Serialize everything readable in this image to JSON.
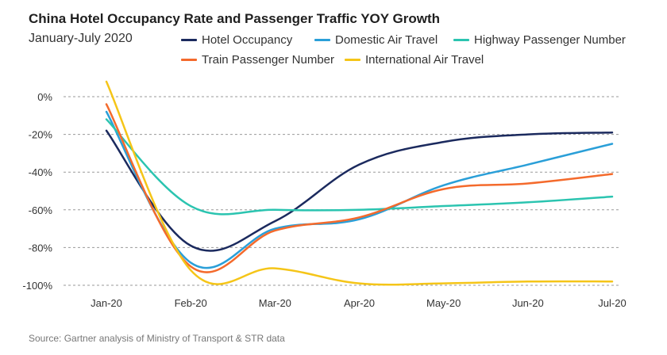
{
  "title": "China Hotel Occupancy Rate and Passenger Traffic YOY Growth",
  "subtitle": "January-July 2020",
  "source": "Source: Gartner analysis of Ministry of Transport & STR data",
  "chart_data": {
    "type": "line",
    "title": "China Hotel Occupancy Rate and Passenger Traffic YOY Growth",
    "subtitle": "January-July 2020",
    "categories": [
      "Jan-20",
      "Feb-20",
      "Mar-20",
      "Apr-20",
      "May-20",
      "Jun-20",
      "Jul-20"
    ],
    "y_ticks": [
      "0%",
      "-20%",
      "-40%",
      "-60%",
      "-80%",
      "-100%"
    ],
    "y_tick_values": [
      0,
      -20,
      -40,
      -60,
      -80,
      -100
    ],
    "ylim": [
      -100,
      0
    ],
    "legend_position": "top",
    "grid": "horizontal dashed",
    "series": [
      {
        "name": "Hotel Occupancy",
        "color": "#1b2a5e",
        "values": [
          -18,
          -79,
          -66,
          -36,
          -24,
          -20,
          -19
        ]
      },
      {
        "name": "Domestic Air Travel",
        "color": "#2a9fd8",
        "values": [
          -8,
          -88,
          -70,
          -65,
          -47,
          -36,
          -25
        ]
      },
      {
        "name": "Highway Passenger Number",
        "color": "#2bc4b0",
        "values": [
          -12,
          -58,
          -60,
          -60,
          -58,
          -56,
          -53
        ]
      },
      {
        "name": "Train Passenger Number",
        "color": "#f46a2c",
        "values": [
          -4,
          -90,
          -71,
          -64,
          -49,
          -46,
          -41
        ]
      },
      {
        "name": "International Air Travel",
        "color": "#f5c518",
        "values": [
          8,
          -92,
          -91,
          -99,
          -99,
          -98,
          -98
        ]
      }
    ]
  }
}
